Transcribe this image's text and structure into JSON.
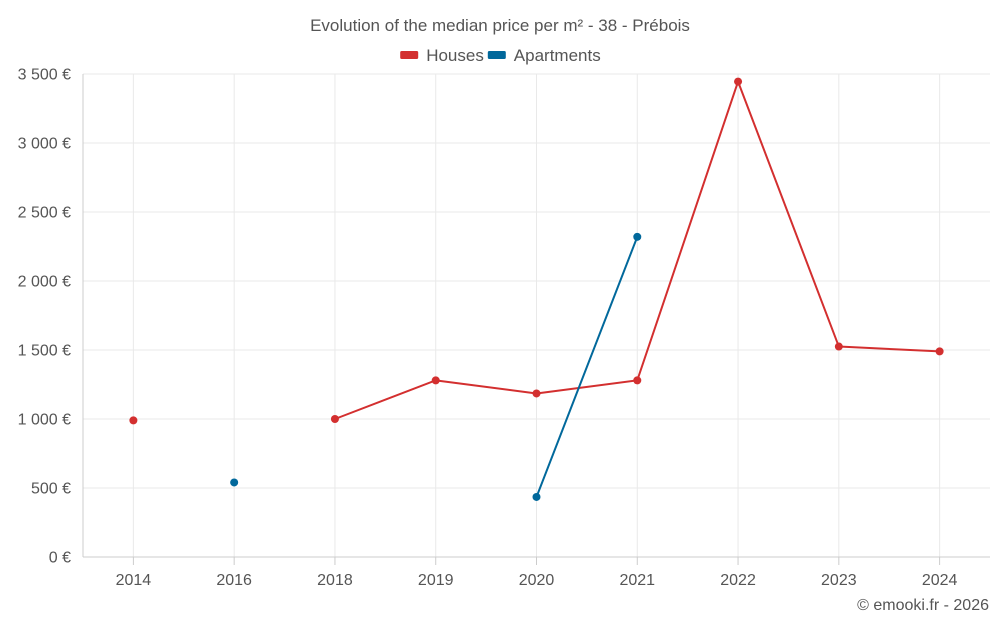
{
  "chart_data": {
    "type": "line",
    "title": "Evolution of the median price per m² - 38 - Prébois",
    "categories": [
      "2014",
      "2016",
      "2018",
      "2019",
      "2020",
      "2021",
      "2022",
      "2023",
      "2024"
    ],
    "series": [
      {
        "name": "Houses",
        "color": "#d32f2f",
        "values": [
          990,
          null,
          1000,
          1280,
          1185,
          1280,
          3445,
          1525,
          1490
        ]
      },
      {
        "name": "Apartments",
        "color": "#01689b",
        "values": [
          null,
          540,
          null,
          null,
          435,
          2320,
          null,
          null,
          null
        ]
      }
    ],
    "ylim": [
      0,
      3500
    ],
    "yticks": [
      0,
      500,
      1000,
      1500,
      2000,
      2500,
      3000,
      3500
    ],
    "ytick_labels": [
      "0 €",
      "500 €",
      "1 000 €",
      "1 500 €",
      "2 000 €",
      "2 500 €",
      "3 000 €",
      "3 500 €"
    ],
    "grid": true,
    "legend_position": "top-center",
    "xlabel": "",
    "ylabel": ""
  },
  "credit": "© emooki.fr - 2026"
}
